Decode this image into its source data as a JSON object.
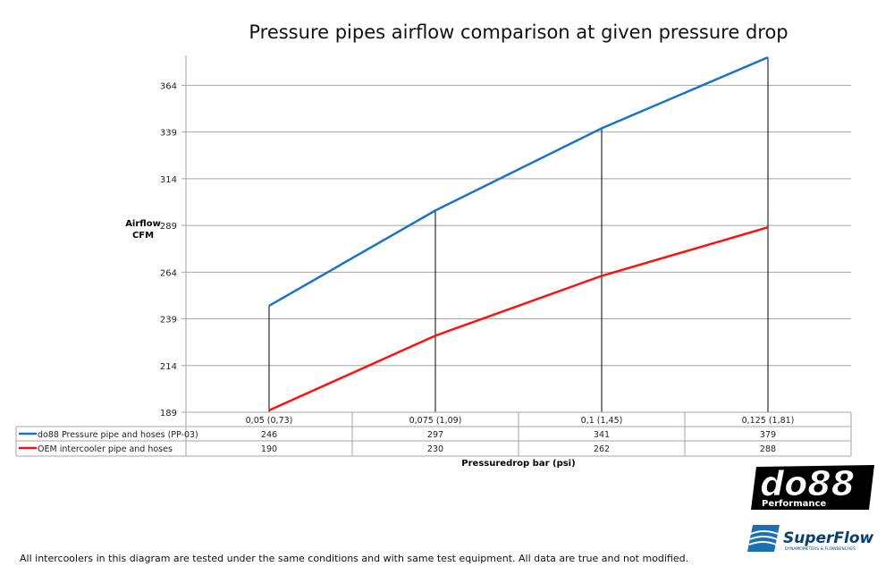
{
  "chart_data": {
    "type": "line",
    "title": "Pressure pipes airflow comparison at given pressure drop",
    "xlabel": "Pressuredrop bar (psi)",
    "ylabel": [
      "Airflow",
      "CFM"
    ],
    "categories": [
      "0,05 (0,73)",
      "0,075 (1,09)",
      "0,1 (1,45)",
      "0,125 (1,81)"
    ],
    "yticks": [
      189,
      214,
      239,
      264,
      289,
      314,
      339,
      364
    ],
    "ylim": [
      189,
      380
    ],
    "grid": true,
    "legend": "data-table",
    "drop_lines": true,
    "series": [
      {
        "name": "do88 Pressure pipe and hoses (PP-03)",
        "values": [
          246,
          297,
          341,
          379
        ],
        "color": "#1874c8"
      },
      {
        "name": "OEM intercooler pipe and hoses",
        "values": [
          190,
          230,
          262,
          288
        ],
        "color": "#ff1010"
      }
    ]
  },
  "logos": {
    "do88": "do88 Performance",
    "superflow": "SuperFlow DYNAMOMETERS & FLOWBENCHES"
  },
  "footer": "All intercoolers in this diagram are tested under the same conditions and with same test equipment. All data are true and not modified."
}
